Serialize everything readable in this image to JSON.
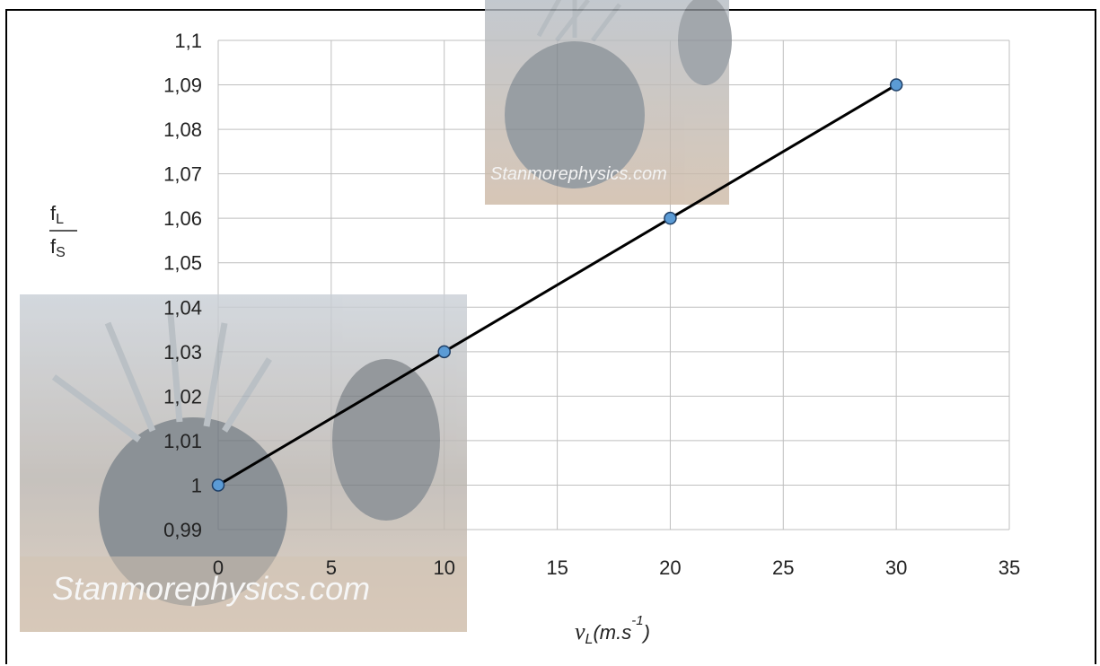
{
  "chart_data": {
    "type": "line",
    "xlabel": "v",
    "xlabel_sub": "L",
    "xlabel_units": "(m.s",
    "xlabel_exp": "-1",
    "xlabel_close": ")",
    "ylabel_num": "f",
    "ylabel_num_sub": "L",
    "ylabel_den": "f",
    "ylabel_den_sub": "S",
    "xlim": [
      0,
      35
    ],
    "ylim": [
      0.99,
      1.1
    ],
    "x_ticks": [
      "0",
      "5",
      "10",
      "15",
      "20",
      "25",
      "30",
      "35"
    ],
    "y_ticks": [
      "0,99",
      "1",
      "1,01",
      "1,02",
      "1,03",
      "1,04",
      "1,05",
      "1,06",
      "1,07",
      "1,08",
      "1,09",
      "1,1"
    ],
    "grid": true,
    "series": [
      {
        "x": [
          0,
          10,
          20,
          30
        ],
        "y": [
          1.0,
          1.03,
          1.06,
          1.09
        ]
      }
    ],
    "colors": {
      "line": "#000000",
      "marker_fill": "#5b9bd5",
      "marker_stroke": "#1f3f66",
      "grid": "#bfbfbf"
    }
  },
  "watermark": {
    "text": "Stanmorephysics.com"
  }
}
